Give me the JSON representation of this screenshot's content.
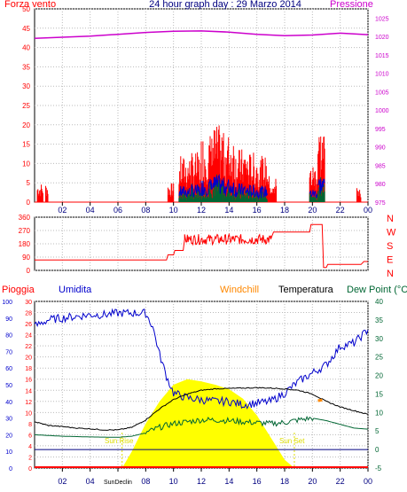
{
  "title": "24 hour graph day : 29 Marzo 2014",
  "colors": {
    "wind": "#ff0000",
    "pressure": "#cc00cc",
    "title": "#000080",
    "humidity": "#0000cc",
    "windchill": "#ff8800",
    "temperature": "#000000",
    "dewpoint": "#006633",
    "sun": "#ffff00",
    "sunlabel": "#dddd00",
    "grid": "#bbbbbb"
  },
  "chart_data": [
    {
      "type": "bar",
      "panel": "wind-pressure",
      "left_axis_label": "Forza vento",
      "right_axis_label": "Pressione",
      "x_ticks": [
        "02",
        "04",
        "06",
        "08",
        "10",
        "12",
        "14",
        "16",
        "18",
        "20",
        "22",
        "00"
      ],
      "y_left_ticks": [
        0,
        5,
        10,
        15,
        20,
        25,
        30,
        35,
        40,
        45,
        50
      ],
      "y_right_ticks": [
        975,
        980,
        985,
        990,
        995,
        1000,
        1005,
        1010,
        1015,
        1020,
        1025
      ],
      "ylim_left": [
        0,
        50
      ],
      "ylim_right": [
        975,
        1027.5
      ],
      "grid": true,
      "pressure": {
        "x": [
          0,
          2,
          4,
          6,
          8,
          10,
          12,
          14,
          16,
          18,
          20,
          22,
          24
        ],
        "y": [
          1019.5,
          1019.8,
          1020.1,
          1020.6,
          1021.1,
          1021.4,
          1021.5,
          1021.2,
          1020.6,
          1020.2,
          1020.4,
          1020.9,
          1020.5
        ]
      },
      "wind_segments": [
        {
          "x0": 0.2,
          "x1": 0.6,
          "max": 5
        },
        {
          "x0": 0.8,
          "x1": 1.0,
          "max": 5
        },
        {
          "x0": 9.6,
          "x1": 10.0,
          "max": 5
        },
        {
          "x0": 10.4,
          "x1": 11.2,
          "max": 12
        },
        {
          "x0": 11.2,
          "x1": 12.0,
          "max": 13
        },
        {
          "x0": 12.0,
          "x1": 12.8,
          "max": 18
        },
        {
          "x0": 12.8,
          "x1": 13.6,
          "max": 20
        },
        {
          "x0": 13.6,
          "x1": 14.4,
          "max": 18
        },
        {
          "x0": 14.4,
          "x1": 15.2,
          "max": 14
        },
        {
          "x0": 15.2,
          "x1": 16.0,
          "max": 13
        },
        {
          "x0": 16.0,
          "x1": 16.8,
          "max": 12
        },
        {
          "x0": 16.8,
          "x1": 17.4,
          "max": 7
        },
        {
          "x0": 19.8,
          "x1": 20.4,
          "max": 10
        },
        {
          "x0": 20.4,
          "x1": 20.9,
          "max": 20
        },
        {
          "x0": 23.2,
          "x1": 23.5,
          "max": 5
        }
      ]
    },
    {
      "type": "line",
      "panel": "wind-direction",
      "right_labels": [
        "N",
        "W",
        "S",
        "E",
        "N"
      ],
      "y_ticks": [
        0,
        90,
        180,
        270,
        360
      ],
      "ylim": [
        0,
        360
      ],
      "x_ticks": [
        "02",
        "04",
        "06",
        "08",
        "10",
        "12",
        "14",
        "16",
        "18",
        "20",
        "22",
        "00"
      ],
      "grid": true,
      "direction": {
        "x": [
          0,
          9.5,
          9.6,
          10.0,
          10.1,
          10.7,
          10.8,
          17.0,
          17.2,
          19.8,
          19.9,
          20.7,
          20.8,
          21.0,
          21.1,
          23.5,
          23.7,
          24.0
        ],
        "y": [
          70,
          70,
          105,
          105,
          135,
          135,
          210,
          210,
          260,
          260,
          310,
          310,
          20,
          20,
          40,
          40,
          60,
          60
        ]
      }
    },
    {
      "type": "line",
      "panel": "temperature-humidity-rain",
      "left_axis_label": "Pioggia",
      "humidity_label": "Umidita",
      "windchill_label": "Windchill",
      "temperature_label": "Temperatura",
      "dewpoint_label": "Dew Point (°C",
      "rain_ticks": [
        0,
        2,
        4,
        6,
        8,
        10,
        12,
        14,
        16,
        18,
        20,
        22,
        24,
        26,
        28,
        30
      ],
      "humidity_ticks": [
        0,
        10,
        20,
        30,
        40,
        50,
        60,
        70,
        80,
        90,
        100
      ],
      "temp_ticks": [
        -5,
        0,
        5,
        10,
        15,
        20,
        25,
        30,
        35,
        40
      ],
      "ylim_rain": [
        0,
        30
      ],
      "ylim_humidity": [
        0,
        100
      ],
      "ylim_temp": [
        -5,
        40
      ],
      "x_ticks": [
        "02",
        "04",
        "06",
        "08",
        "10",
        "12",
        "14",
        "16",
        "18",
        "20",
        "22",
        "00"
      ],
      "sun_rise_label": "Sun Rise",
      "sun_set_label": "Sun Set",
      "sun_x_label": "SunDeclin",
      "sun_rise": 6.3,
      "sun_set": 18.7,
      "grid": true,
      "temperature": {
        "x": [
          0,
          1,
          2,
          3,
          4,
          5,
          6,
          7,
          8,
          9,
          10,
          11,
          12,
          13,
          14,
          15,
          16,
          17,
          18,
          19,
          20,
          21,
          22,
          23,
          24
        ],
        "y": [
          7.5,
          6.5,
          6.2,
          5.8,
          5.6,
          5.3,
          5.3,
          6.0,
          8.0,
          11.0,
          13.5,
          15.0,
          16.0,
          16.4,
          16.5,
          16.6,
          16.7,
          16.6,
          16.4,
          16.0,
          15.0,
          13.0,
          11.5,
          10.5,
          9.5
        ]
      },
      "dewpoint": {
        "x": [
          0,
          2,
          4,
          6,
          7,
          8,
          9,
          10,
          11,
          12,
          13,
          14,
          15,
          16,
          17,
          18,
          19,
          20,
          21,
          22,
          23,
          24
        ],
        "y": [
          4.0,
          3.6,
          3.4,
          3.3,
          3.6,
          4.5,
          6.0,
          7.0,
          7.5,
          8.0,
          8.0,
          7.8,
          7.5,
          7.2,
          7.0,
          7.3,
          8.0,
          8.5,
          7.8,
          6.8,
          5.8,
          5.5
        ]
      },
      "humidity": {
        "x": [
          0,
          1,
          2,
          3,
          4,
          5,
          6,
          7,
          8,
          8.5,
          9,
          9.5,
          10,
          11,
          12,
          13,
          14,
          15,
          16,
          17,
          18,
          19,
          20,
          21,
          22,
          23,
          24
        ],
        "y": [
          85,
          89,
          90,
          91,
          92,
          92,
          93,
          93,
          93,
          85,
          68,
          55,
          45,
          42,
          41,
          40,
          40,
          38,
          39,
          40,
          45,
          52,
          57,
          62,
          73,
          75,
          83
        ]
      },
      "windchill": {
        "x": [
          20.4,
          20.7
        ],
        "y": [
          13.2,
          13.4
        ]
      },
      "sun": {
        "x": [
          6.3,
          7,
          8,
          9,
          10,
          11,
          12,
          13,
          14,
          15,
          16,
          17,
          18,
          18.7
        ],
        "y": [
          0,
          3,
          8,
          12,
          15,
          16,
          15.6,
          15.0,
          14.2,
          12.5,
          9.5,
          5.5,
          1.5,
          0
        ]
      }
    }
  ]
}
